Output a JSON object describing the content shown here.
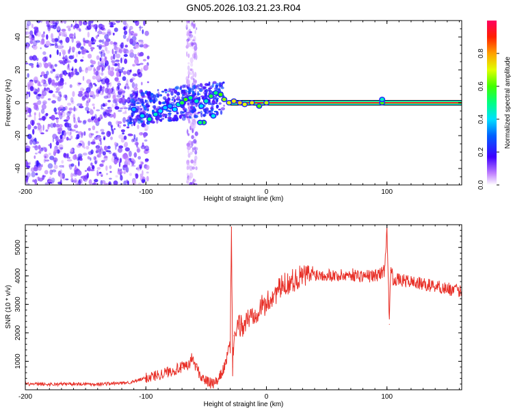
{
  "figure": {
    "title": "GN05.2026.103.21.23.R04",
    "colors": {
      "snr_line": "#e83028",
      "spectrogram_scatter": "#7a2ae6",
      "ridge": "#e8283a",
      "axis": "#000000",
      "background": "#ffffff"
    }
  },
  "chart_data": [
    {
      "type": "heatmap",
      "title": "",
      "xlabel": "Height of straight line (km)",
      "ylabel": "Frequency (Hz)",
      "xlim": [
        -200,
        162
      ],
      "ylim": [
        -50,
        50
      ],
      "x_ticks": [
        {
          "value": -200,
          "label": "-200"
        },
        {
          "value": -100,
          "label": "-100"
        },
        {
          "value": 0,
          "label": "0"
        },
        {
          "value": 100,
          "label": "100"
        }
      ],
      "y_ticks": [
        {
          "value": -40,
          "label": "-40"
        },
        {
          "value": -20,
          "label": "-20"
        },
        {
          "value": 0,
          "label": "0"
        },
        {
          "value": 20,
          "label": "20"
        },
        {
          "value": 40,
          "label": "40"
        }
      ],
      "colorbar": {
        "label": "Normalized spectral amplitude",
        "range": [
          0,
          1
        ],
        "ticks": [
          {
            "value": 0.0,
            "label": "0.0"
          },
          {
            "value": 0.2,
            "label": "0.2"
          },
          {
            "value": 0.4,
            "label": "0.4"
          },
          {
            "value": 0.6,
            "label": "0.6"
          },
          {
            "value": 0.8,
            "label": "0.8"
          }
        ]
      },
      "ridge": {
        "description_values": {
          "height_start_km": -30,
          "height_end_km": 162,
          "frequency_hz": 0,
          "amplitude": 1.0
        }
      },
      "bright_points": [
        {
          "x": -110,
          "y": -4,
          "a": 0.35
        },
        {
          "x": -103,
          "y": -8,
          "a": 0.42
        },
        {
          "x": -97,
          "y": -10,
          "a": 0.5
        },
        {
          "x": -92,
          "y": -7,
          "a": 0.45
        },
        {
          "x": -88,
          "y": -5,
          "a": 0.4
        },
        {
          "x": -84,
          "y": -3,
          "a": 0.38
        },
        {
          "x": -80,
          "y": -2,
          "a": 0.35
        },
        {
          "x": -76,
          "y": -4,
          "a": 0.4
        },
        {
          "x": -73,
          "y": -1,
          "a": 0.45
        },
        {
          "x": -70,
          "y": 0,
          "a": 0.55
        },
        {
          "x": -67,
          "y": 2,
          "a": 0.6
        },
        {
          "x": -63,
          "y": 3,
          "a": 0.5
        },
        {
          "x": -58,
          "y": 1,
          "a": 0.45
        },
        {
          "x": -54,
          "y": -2,
          "a": 0.4
        },
        {
          "x": -50,
          "y": 1,
          "a": 0.45
        },
        {
          "x": -46,
          "y": 4,
          "a": 0.55
        },
        {
          "x": -42,
          "y": 6,
          "a": 0.5
        },
        {
          "x": -38,
          "y": 5,
          "a": 0.6
        },
        {
          "x": -35,
          "y": 2,
          "a": 0.65
        },
        {
          "x": -31,
          "y": 0,
          "a": 0.7
        },
        {
          "x": -27,
          "y": 1,
          "a": 0.72
        },
        {
          "x": -22,
          "y": 0,
          "a": 0.75
        },
        {
          "x": -18,
          "y": -1,
          "a": 0.7
        },
        {
          "x": -12,
          "y": 0,
          "a": 0.72
        },
        {
          "x": -6,
          "y": -2,
          "a": 0.6
        },
        {
          "x": 0,
          "y": 0,
          "a": 0.68
        },
        {
          "x": -52,
          "y": -12,
          "a": 0.55
        },
        {
          "x": -55,
          "y": -12,
          "a": 0.5
        },
        {
          "x": -44,
          "y": -8,
          "a": 0.42
        },
        {
          "x": 96,
          "y": 0,
          "a": 0.6
        },
        {
          "x": 96,
          "y": 2,
          "a": 0.45
        }
      ]
    },
    {
      "type": "line",
      "title": "",
      "xlabel": "Height of straight line (km)",
      "ylabel": "SNR (10 * v/v)",
      "xlim": [
        -200,
        162
      ],
      "ylim": [
        0,
        5800
      ],
      "x_ticks": [
        {
          "value": -200,
          "label": "-200"
        },
        {
          "value": -100,
          "label": "-100"
        },
        {
          "value": 0,
          "label": "0"
        },
        {
          "value": 100,
          "label": "100"
        }
      ],
      "y_ticks": [
        {
          "value": 1000,
          "label": "1000"
        },
        {
          "value": 2000,
          "label": "2000"
        },
        {
          "value": 3000,
          "label": "3000"
        },
        {
          "value": 4000,
          "label": "4000"
        },
        {
          "value": 5000,
          "label": "5000"
        }
      ],
      "series": [
        {
          "name": "SNR",
          "x": [
            -200,
            -180,
            -160,
            -140,
            -120,
            -110,
            -100,
            -90,
            -80,
            -75,
            -70,
            -65,
            -62,
            -58,
            -55,
            -50,
            -45,
            -40,
            -38,
            -34,
            -32,
            -30,
            -29,
            -28,
            -27,
            -25,
            -22,
            -20,
            -15,
            -10,
            -5,
            0,
            5,
            10,
            15,
            20,
            25,
            30,
            40,
            50,
            60,
            70,
            80,
            90,
            95,
            98,
            100,
            102,
            103,
            104,
            105,
            110,
            120,
            130,
            140,
            150,
            162
          ],
          "values": [
            200,
            190,
            210,
            200,
            230,
            280,
            420,
            520,
            650,
            720,
            780,
            820,
            1100,
            800,
            500,
            300,
            200,
            300,
            500,
            900,
            1300,
            1600,
            5700,
            800,
            1900,
            2000,
            2300,
            2200,
            2500,
            2700,
            2900,
            3000,
            3300,
            3500,
            3700,
            3800,
            3900,
            4000,
            4050,
            4050,
            4000,
            4050,
            4000,
            4000,
            4100,
            4200,
            5800,
            2300,
            4200,
            4100,
            3900,
            3850,
            3800,
            3700,
            3650,
            3550,
            3450
          ]
        }
      ]
    }
  ]
}
